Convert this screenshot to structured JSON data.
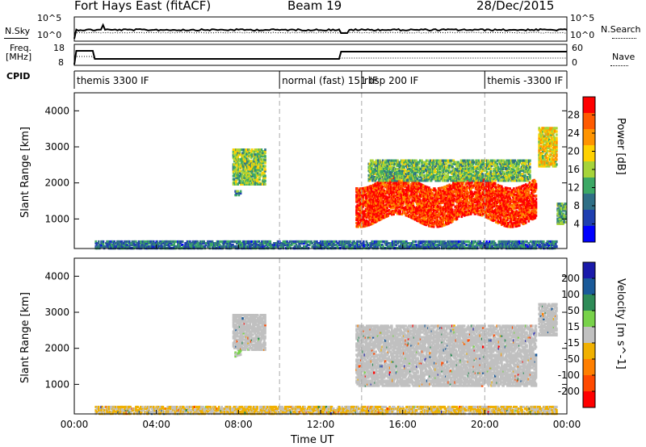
{
  "header": {
    "station": "Fort Hays East (fitACF)",
    "beam": "Beam 19",
    "date": "28/Dec/2015"
  },
  "strips": {
    "nsky_label": "N.Sky",
    "nsearch_label": "N.Search",
    "noise_ticks_left": [
      "10^5",
      "10^0"
    ],
    "noise_ticks_right": [
      "10^5",
      "10^0"
    ],
    "freq_label_1": "Freq.",
    "freq_label_2": "[MHz]",
    "freq_ticks": [
      "18",
      "8"
    ],
    "nave_label": "Nave",
    "nave_ticks": [
      "60",
      "0"
    ],
    "cpid_label": "CPID",
    "cpid_segments": [
      {
        "label": "themis 3300 IF",
        "start_h": 0
      },
      {
        "label": "normal (fast) 151 IF",
        "start_h": 10
      },
      {
        "label": "rbsp 200 IF",
        "start_h": 14
      },
      {
        "label": "themis -3300 IF",
        "start_h": 20
      }
    ]
  },
  "panels": {
    "power": {
      "ylabel": "Slant Range [km]",
      "colorbar_label": "Power [dB]",
      "colorbar_ticks": [
        "28",
        "24",
        "20",
        "16",
        "12",
        "8",
        "4"
      ],
      "colorbar_colors": [
        "#ff0000",
        "#ff5a00",
        "#ff9400",
        "#ffd100",
        "#a6d43a",
        "#3ca865",
        "#2f6f86",
        "#1f3fb0",
        "#0000ff"
      ]
    },
    "velocity": {
      "ylabel": "Slant Range [km]",
      "colorbar_label": "Velocity [m s^-1]",
      "colorbar_ticks": [
        "200",
        "100",
        "50",
        "15",
        "-15",
        "-50",
        "-100",
        "-200"
      ],
      "colorbar_colors": [
        "#1a1aaa",
        "#1a5a99",
        "#2e8b57",
        "#78d24a",
        "#c0c0c0",
        "#f0b000",
        "#ff7f00",
        "#ff4a00",
        "#ff0000"
      ]
    }
  },
  "axes": {
    "xlabel": "Time UT",
    "x_ticks": [
      "00:00",
      "04:00",
      "08:00",
      "12:00",
      "16:00",
      "20:00",
      "00:00"
    ],
    "y_ticks": [
      "4000",
      "3000",
      "2000",
      "1000"
    ]
  },
  "chart_data": [
    {
      "type": "heatmap",
      "title": "Fort Hays East (fitACF)",
      "xlabel": "Time UT",
      "ylabel": "Slant Range [km]",
      "colorbar": "Power [dB]",
      "xlim_hours": [
        0,
        24
      ],
      "ylim_km": [
        180,
        4500
      ],
      "clim": [
        0,
        30
      ],
      "regions": [
        {
          "t": [
            7.7,
            9.3
          ],
          "r": [
            2000,
            3000
          ],
          "v": 14
        },
        {
          "t": [
            7.8,
            8.1
          ],
          "r": [
            1700,
            1850
          ],
          "v": 10
        },
        {
          "t": [
            13.7,
            22.5
          ],
          "r": [
            1000,
            2100
          ],
          "v": 27
        },
        {
          "t": [
            14.3,
            22.2
          ],
          "r": [
            2100,
            2700
          ],
          "v": 13
        },
        {
          "t": [
            22.6,
            23.5
          ],
          "r": [
            2500,
            3600
          ],
          "v": 18
        },
        {
          "t": [
            23.5,
            24.0
          ],
          "r": [
            900,
            1500
          ],
          "v": 12
        },
        {
          "t": [
            1.0,
            23.5
          ],
          "r": [
            180,
            450
          ],
          "v": 8
        }
      ]
    },
    {
      "type": "heatmap",
      "title": "Fort Hays East (fitACF)",
      "xlabel": "Time UT",
      "ylabel": "Slant Range [km]",
      "colorbar": "Velocity [m s^-1]",
      "xlim_hours": [
        0,
        24
      ],
      "ylim_km": [
        180,
        4500
      ],
      "clim": [
        -250,
        250
      ],
      "regions": [
        {
          "t": [
            7.7,
            9.3
          ],
          "r": [
            2000,
            3000
          ],
          "v": 0
        },
        {
          "t": [
            7.8,
            8.1
          ],
          "r": [
            1700,
            1850
          ],
          "v": 35
        },
        {
          "t": [
            13.7,
            22.5
          ],
          "r": [
            1000,
            2700
          ],
          "v": 0
        },
        {
          "t": [
            22.6,
            23.5
          ],
          "r": [
            2400,
            3300
          ],
          "v": 0
        },
        {
          "t": [
            1.0,
            23.5
          ],
          "r": [
            180,
            450
          ],
          "v": -30
        }
      ]
    }
  ]
}
